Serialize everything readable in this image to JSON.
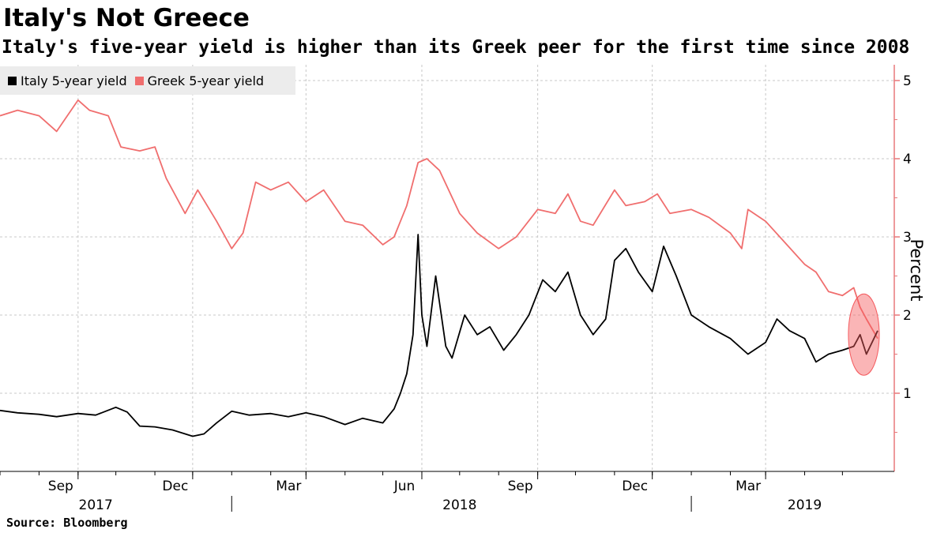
{
  "header": {
    "title": "Italy's Not Greece",
    "subtitle": "Italy's five-year yield is higher than its Greek peer for the first time since 2008"
  },
  "source": "Source: Bloomberg",
  "colors": {
    "italy": "#000000",
    "greece": "#f06e6e",
    "axis": "#e8787b",
    "grid": "#c8c8c8",
    "highlight": "#f45a5e"
  },
  "chart_data": {
    "type": "line",
    "title": "Italy's Not Greece",
    "subtitle": "Italy's five-year yield is higher than its Greek peer for the first time since 2008",
    "ylabel": "Percent",
    "xlabel": "",
    "ylim": [
      0,
      5
    ],
    "yticks": [
      1,
      2,
      3,
      4,
      5
    ],
    "xlim": [
      "2017-07-01",
      "2019-05-29"
    ],
    "grid": true,
    "legend_position": "top-left",
    "x_month_ticks": [
      {
        "date": "2017-09-01",
        "label": "Sep"
      },
      {
        "date": "2017-12-01",
        "label": "Dec"
      },
      {
        "date": "2018-03-01",
        "label": "Mar"
      },
      {
        "date": "2018-06-01",
        "label": "Jun"
      },
      {
        "date": "2018-09-01",
        "label": "Sep"
      },
      {
        "date": "2018-12-01",
        "label": "Dec"
      },
      {
        "date": "2019-03-01",
        "label": "Mar"
      }
    ],
    "x_year_labels": [
      {
        "date": "2017-09-15",
        "label": "2017"
      },
      {
        "date": "2018-07-01",
        "label": "2018"
      },
      {
        "date": "2019-04-01",
        "label": "2019"
      }
    ],
    "x_year_dividers": [
      "2018-01-01",
      "2019-01-01"
    ],
    "highlight": {
      "date_start": "2019-05-07",
      "date_end": "2019-05-29",
      "center_date": "2019-05-18",
      "y_low": 1.23,
      "y_high": 2.27
    },
    "series": [
      {
        "name": "Italy 5-year yield",
        "color": "#000000",
        "points": [
          [
            "2017-07-01",
            0.78
          ],
          [
            "2017-07-15",
            0.75
          ],
          [
            "2017-08-01",
            0.73
          ],
          [
            "2017-08-15",
            0.7
          ],
          [
            "2017-09-01",
            0.74
          ],
          [
            "2017-09-15",
            0.72
          ],
          [
            "2017-10-01",
            0.82
          ],
          [
            "2017-10-10",
            0.76
          ],
          [
            "2017-10-20",
            0.58
          ],
          [
            "2017-11-01",
            0.57
          ],
          [
            "2017-11-15",
            0.53
          ],
          [
            "2017-12-01",
            0.45
          ],
          [
            "2017-12-10",
            0.48
          ],
          [
            "2017-12-20",
            0.62
          ],
          [
            "2018-01-01",
            0.77
          ],
          [
            "2018-01-15",
            0.72
          ],
          [
            "2018-02-01",
            0.74
          ],
          [
            "2018-02-15",
            0.7
          ],
          [
            "2018-03-01",
            0.75
          ],
          [
            "2018-03-15",
            0.7
          ],
          [
            "2018-04-01",
            0.6
          ],
          [
            "2018-04-15",
            0.68
          ],
          [
            "2018-05-01",
            0.62
          ],
          [
            "2018-05-10",
            0.8
          ],
          [
            "2018-05-15",
            1.0
          ],
          [
            "2018-05-20",
            1.25
          ],
          [
            "2018-05-25",
            1.75
          ],
          [
            "2018-05-29",
            3.03
          ],
          [
            "2018-06-01",
            2.0
          ],
          [
            "2018-06-05",
            1.6
          ],
          [
            "2018-06-12",
            2.5
          ],
          [
            "2018-06-20",
            1.6
          ],
          [
            "2018-06-25",
            1.45
          ],
          [
            "2018-07-05",
            2.0
          ],
          [
            "2018-07-15",
            1.75
          ],
          [
            "2018-07-25",
            1.85
          ],
          [
            "2018-08-05",
            1.55
          ],
          [
            "2018-08-15",
            1.75
          ],
          [
            "2018-08-25",
            2.0
          ],
          [
            "2018-09-05",
            2.45
          ],
          [
            "2018-09-15",
            2.3
          ],
          [
            "2018-09-25",
            2.55
          ],
          [
            "2018-10-05",
            2.0
          ],
          [
            "2018-10-15",
            1.75
          ],
          [
            "2018-10-25",
            1.95
          ],
          [
            "2018-11-01",
            2.7
          ],
          [
            "2018-11-10",
            2.85
          ],
          [
            "2018-11-20",
            2.55
          ],
          [
            "2018-12-01",
            2.3
          ],
          [
            "2018-12-10",
            2.88
          ],
          [
            "2018-12-20",
            2.5
          ],
          [
            "2019-01-01",
            2.0
          ],
          [
            "2019-01-15",
            1.85
          ],
          [
            "2019-02-01",
            1.7
          ],
          [
            "2019-02-15",
            1.5
          ],
          [
            "2019-03-01",
            1.65
          ],
          [
            "2019-03-10",
            1.95
          ],
          [
            "2019-03-20",
            1.8
          ],
          [
            "2019-04-01",
            1.7
          ],
          [
            "2019-04-10",
            1.4
          ],
          [
            "2019-04-20",
            1.5
          ],
          [
            "2019-05-01",
            1.55
          ],
          [
            "2019-05-10",
            1.6
          ],
          [
            "2019-05-15",
            1.75
          ],
          [
            "2019-05-20",
            1.5
          ],
          [
            "2019-05-29",
            1.8
          ]
        ]
      },
      {
        "name": "Greek 5-year yield",
        "color": "#f06e6e",
        "points": [
          [
            "2017-07-01",
            4.55
          ],
          [
            "2017-07-15",
            4.62
          ],
          [
            "2017-08-01",
            4.55
          ],
          [
            "2017-08-15",
            4.35
          ],
          [
            "2017-09-01",
            4.75
          ],
          [
            "2017-09-10",
            4.62
          ],
          [
            "2017-09-25",
            4.55
          ],
          [
            "2017-10-05",
            4.15
          ],
          [
            "2017-10-20",
            4.1
          ],
          [
            "2017-11-01",
            4.15
          ],
          [
            "2017-11-10",
            3.75
          ],
          [
            "2017-11-25",
            3.3
          ],
          [
            "2017-12-05",
            3.6
          ],
          [
            "2017-12-20",
            3.2
          ],
          [
            "2018-01-01",
            2.85
          ],
          [
            "2018-01-10",
            3.05
          ],
          [
            "2018-01-20",
            3.7
          ],
          [
            "2018-02-01",
            3.6
          ],
          [
            "2018-02-15",
            3.7
          ],
          [
            "2018-03-01",
            3.45
          ],
          [
            "2018-03-15",
            3.6
          ],
          [
            "2018-04-01",
            3.2
          ],
          [
            "2018-04-15",
            3.15
          ],
          [
            "2018-05-01",
            2.9
          ],
          [
            "2018-05-10",
            3.0
          ],
          [
            "2018-05-20",
            3.4
          ],
          [
            "2018-05-29",
            3.95
          ],
          [
            "2018-06-05",
            4.0
          ],
          [
            "2018-06-15",
            3.85
          ],
          [
            "2018-07-01",
            3.3
          ],
          [
            "2018-07-15",
            3.05
          ],
          [
            "2018-08-01",
            2.85
          ],
          [
            "2018-08-15",
            3.0
          ],
          [
            "2018-09-01",
            3.35
          ],
          [
            "2018-09-15",
            3.3
          ],
          [
            "2018-09-25",
            3.55
          ],
          [
            "2018-10-05",
            3.2
          ],
          [
            "2018-10-15",
            3.15
          ],
          [
            "2018-11-01",
            3.6
          ],
          [
            "2018-11-10",
            3.4
          ],
          [
            "2018-11-25",
            3.45
          ],
          [
            "2018-12-05",
            3.55
          ],
          [
            "2018-12-15",
            3.3
          ],
          [
            "2019-01-01",
            3.35
          ],
          [
            "2019-01-15",
            3.25
          ],
          [
            "2019-02-01",
            3.05
          ],
          [
            "2019-02-10",
            2.85
          ],
          [
            "2019-02-15",
            3.35
          ],
          [
            "2019-03-01",
            3.2
          ],
          [
            "2019-03-15",
            2.95
          ],
          [
            "2019-04-01",
            2.65
          ],
          [
            "2019-04-10",
            2.55
          ],
          [
            "2019-04-20",
            2.3
          ],
          [
            "2019-05-01",
            2.25
          ],
          [
            "2019-05-10",
            2.35
          ],
          [
            "2019-05-15",
            2.1
          ],
          [
            "2019-05-20",
            1.95
          ],
          [
            "2019-05-29",
            1.7
          ]
        ]
      }
    ]
  }
}
